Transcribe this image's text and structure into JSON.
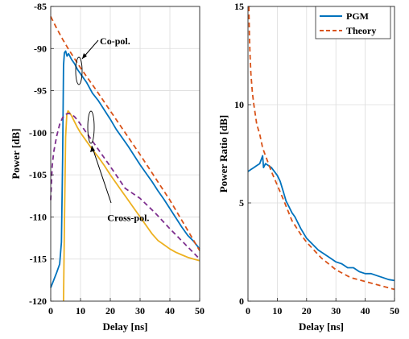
{
  "chart_data": [
    {
      "type": "line",
      "xlabel": "Delay [ns]",
      "ylabel": "Power [dB]",
      "xlim": [
        0,
        50
      ],
      "ylim": [
        -120,
        -85
      ],
      "xticks": [
        0,
        10,
        20,
        30,
        40,
        50
      ],
      "yticks": [
        -85,
        -90,
        -95,
        -100,
        -105,
        -110,
        -115,
        -120
      ],
      "grid": true,
      "annotations": [
        {
          "text": "Co-pol.",
          "x": 16.5,
          "y": -89.5
        },
        {
          "text": "Cross-pol.",
          "x": 19,
          "y": -110.5
        }
      ],
      "series": [
        {
          "color": "#0072BD",
          "dash": "solid",
          "x": [
            0,
            1,
            2,
            3,
            3.6,
            4.0,
            4.3,
            4.6,
            5,
            5.5,
            6,
            7,
            8,
            9,
            10,
            12,
            14,
            16,
            18,
            20,
            22,
            24,
            26,
            28,
            30,
            32,
            34,
            36,
            38,
            40,
            42,
            44,
            46,
            48,
            50
          ],
          "y": [
            -118.4,
            -117.5,
            -116.6,
            -115.6,
            -113.0,
            -103.0,
            -92.0,
            -90.5,
            -90.3,
            -90.9,
            -90.6,
            -91.3,
            -91.8,
            -92.5,
            -93.0,
            -94.0,
            -95.3,
            -96.2,
            -97.3,
            -98.4,
            -99.6,
            -100.6,
            -101.6,
            -102.7,
            -103.8,
            -104.8,
            -105.8,
            -106.9,
            -107.9,
            -109.0,
            -110.1,
            -111.2,
            -112.2,
            -112.9,
            -113.8
          ]
        },
        {
          "color": "#EDB120",
          "dash": "solid",
          "x": [
            4.3,
            4.6,
            5.0,
            5.4,
            5.8,
            6.3,
            7,
            8,
            9,
            10,
            12,
            14,
            16,
            18,
            20,
            22,
            24,
            26,
            28,
            30,
            32,
            34,
            36,
            38,
            40,
            42,
            44,
            46,
            48,
            50
          ],
          "y": [
            -120.0,
            -111.0,
            -100.5,
            -97.8,
            -97.4,
            -97.6,
            -98.0,
            -98.7,
            -99.4,
            -100.0,
            -101.0,
            -102.0,
            -102.9,
            -103.9,
            -105.0,
            -106.0,
            -107.0,
            -108.0,
            -109.0,
            -110.0,
            -111.0,
            -112.0,
            -112.8,
            -113.3,
            -113.8,
            -114.2,
            -114.5,
            -114.8,
            -115.0,
            -115.2
          ]
        },
        {
          "color": "#D95319",
          "dash": "dashed",
          "x": [
            0,
            2,
            4,
            6,
            8,
            10,
            12,
            15,
            20,
            25,
            30,
            35,
            40,
            45,
            50
          ],
          "y": [
            -86.2,
            -87.6,
            -88.9,
            -90.1,
            -91.2,
            -92.3,
            -93.3,
            -94.8,
            -97.4,
            -100.0,
            -102.6,
            -105.3,
            -108.0,
            -111.0,
            -114.0
          ]
        },
        {
          "color": "#7E2F8E",
          "dash": "dashed",
          "x": [
            0,
            0.5,
            1,
            2,
            3,
            4,
            5,
            6,
            7,
            8,
            9,
            10,
            12,
            15,
            20,
            25,
            30,
            35,
            40,
            45,
            50
          ],
          "y": [
            -108.0,
            -104.0,
            -102.3,
            -100.4,
            -99.0,
            -98.2,
            -97.8,
            -97.7,
            -97.8,
            -98.1,
            -98.5,
            -99.0,
            -100.0,
            -101.5,
            -104.0,
            -106.6,
            -107.8,
            -109.5,
            -111.4,
            -113.2,
            -115.0
          ]
        }
      ]
    },
    {
      "type": "line",
      "xlabel": "Delay [ns]",
      "ylabel": "Power Ratio [dB]",
      "xlim": [
        0,
        50
      ],
      "ylim": [
        0,
        15
      ],
      "xticks": [
        0,
        10,
        20,
        30,
        40,
        50
      ],
      "yticks": [
        0,
        5,
        10,
        15
      ],
      "grid": true,
      "legend": {
        "position": "top-right"
      },
      "series": [
        {
          "name": "PGM",
          "color": "#0072BD",
          "dash": "solid",
          "x": [
            0,
            1,
            2,
            3,
            4,
            4.5,
            5,
            5.3,
            6,
            7,
            8,
            9,
            10,
            11,
            12,
            13,
            14,
            15,
            16,
            18,
            20,
            22,
            24,
            26,
            28,
            30,
            32,
            34,
            36,
            38,
            40,
            42,
            44,
            46,
            48,
            50
          ],
          "y": [
            6.6,
            6.7,
            6.8,
            6.9,
            7.0,
            7.2,
            7.4,
            6.8,
            7.0,
            6.9,
            6.8,
            6.6,
            6.4,
            6.1,
            5.6,
            5.1,
            4.8,
            4.5,
            4.3,
            3.7,
            3.2,
            2.9,
            2.6,
            2.4,
            2.2,
            2.0,
            1.9,
            1.7,
            1.7,
            1.5,
            1.4,
            1.4,
            1.3,
            1.2,
            1.1,
            1.05
          ]
        },
        {
          "name": "Theory",
          "color": "#D95319",
          "dash": "dashed",
          "x": [
            0.3,
            0.5,
            0.7,
            1,
            1.5,
            2,
            3,
            4,
            5,
            6,
            7,
            8,
            10,
            12,
            15,
            18,
            20,
            25,
            30,
            35,
            40,
            45,
            50
          ],
          "y": [
            15.0,
            13.5,
            12.6,
            11.6,
            10.6,
            10.0,
            9.0,
            8.5,
            7.8,
            7.4,
            7.0,
            6.6,
            5.9,
            5.2,
            4.1,
            3.4,
            3.0,
            2.2,
            1.6,
            1.2,
            1.0,
            0.8,
            0.6
          ]
        }
      ]
    }
  ]
}
